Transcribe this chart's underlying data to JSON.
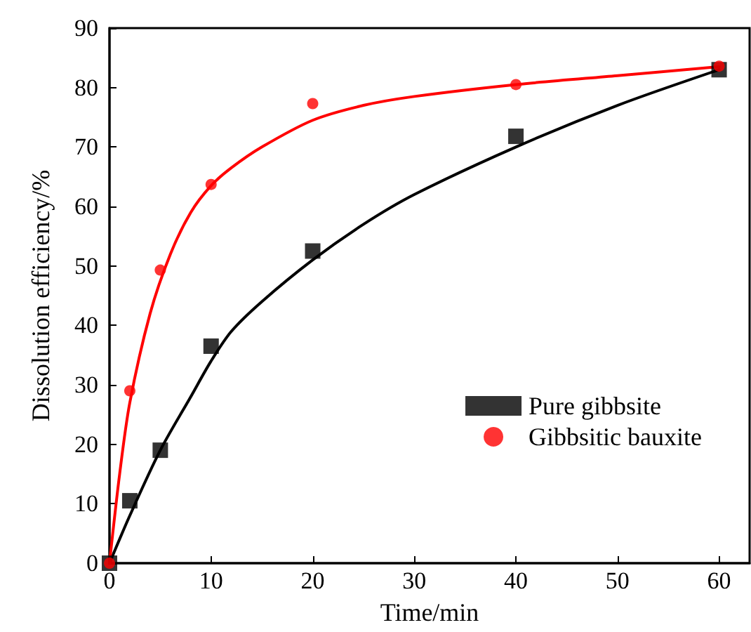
{
  "chart_data": {
    "type": "scatter",
    "xlabel": "Time/min",
    "ylabel": "Dissolution efficiency/%",
    "xlim": [
      0,
      63
    ],
    "ylim": [
      0,
      90
    ],
    "xticks": [
      0,
      10,
      20,
      30,
      40,
      50,
      60
    ],
    "yticks": [
      0,
      10,
      20,
      30,
      40,
      50,
      60,
      70,
      80,
      90
    ],
    "legend": "right",
    "grid": false,
    "series": [
      {
        "name": "Pure gibbsite",
        "color": "#000000",
        "marker": "square",
        "x": [
          0,
          2,
          5,
          10,
          20,
          40,
          60
        ],
        "values": [
          0,
          10.5,
          19,
          36.5,
          52.5,
          71.8,
          83
        ]
      },
      {
        "name": "Gibbsitic bauxite",
        "color": "#ff0000",
        "marker": "circle",
        "x": [
          0,
          2,
          5,
          10,
          20,
          40,
          60
        ],
        "values": [
          0,
          29,
          49.3,
          63.7,
          77.3,
          80.5,
          83.6
        ]
      },
      {
        "type": "line",
        "color": "#000000",
        "marker": "none",
        "x": [
          0,
          2,
          5,
          8,
          10,
          12,
          15,
          20,
          25,
          30,
          40,
          50,
          60
        ],
        "values": [
          0,
          8,
          19,
          28,
          34,
          39,
          44,
          51,
          57,
          62,
          70,
          77,
          83
        ]
      },
      {
        "type": "line",
        "color": "#ff0000",
        "marker": "none",
        "x": [
          0,
          1,
          2,
          4,
          6,
          8,
          10,
          12,
          15,
          20,
          25,
          30,
          40,
          50,
          60
        ],
        "values": [
          0,
          15,
          27,
          42,
          52,
          59,
          63.5,
          66.5,
          70,
          74.5,
          77,
          78.5,
          80.5,
          82,
          83.5
        ]
      }
    ]
  }
}
